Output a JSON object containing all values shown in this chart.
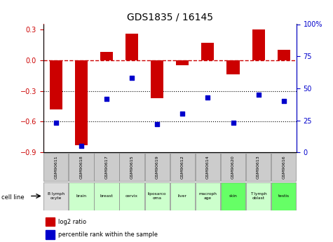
{
  "title": "GDS1835 / 16145",
  "samples": [
    "GSM90611",
    "GSM90618",
    "GSM90617",
    "GSM90615",
    "GSM90619",
    "GSM90612",
    "GSM90614",
    "GSM90620",
    "GSM90613",
    "GSM90616"
  ],
  "cell_lines": [
    "B lymph\nocyte",
    "brain",
    "breast",
    "cervix",
    "liposarco\noma",
    "liver",
    "macroph\nage",
    "skin",
    "T lymph\noblast",
    "testis"
  ],
  "cell_line_colors": [
    "#dddddd",
    "#ccffcc",
    "#ccffcc",
    "#ccffcc",
    "#ccffcc",
    "#ccffcc",
    "#ccffcc",
    "#66ff66",
    "#ccffcc",
    "#66ff66"
  ],
  "log2_ratio": [
    -0.48,
    -0.83,
    0.08,
    0.26,
    -0.37,
    -0.05,
    0.17,
    -0.14,
    0.3,
    0.1
  ],
  "percentile_rank": [
    23,
    5,
    42,
    58,
    22,
    30,
    43,
    23,
    45,
    40
  ],
  "ylim_left": [
    -0.9,
    0.35
  ],
  "ylim_right": [
    0,
    100
  ],
  "yticks_left": [
    -0.9,
    -0.6,
    -0.3,
    0.0,
    0.3
  ],
  "yticks_right": [
    0,
    25,
    50,
    75,
    100
  ],
  "bar_color": "#cc0000",
  "dot_color": "#0000cc",
  "hline_color": "#cc0000",
  "grid_color": "#000000",
  "bg_color": "#ffffff"
}
